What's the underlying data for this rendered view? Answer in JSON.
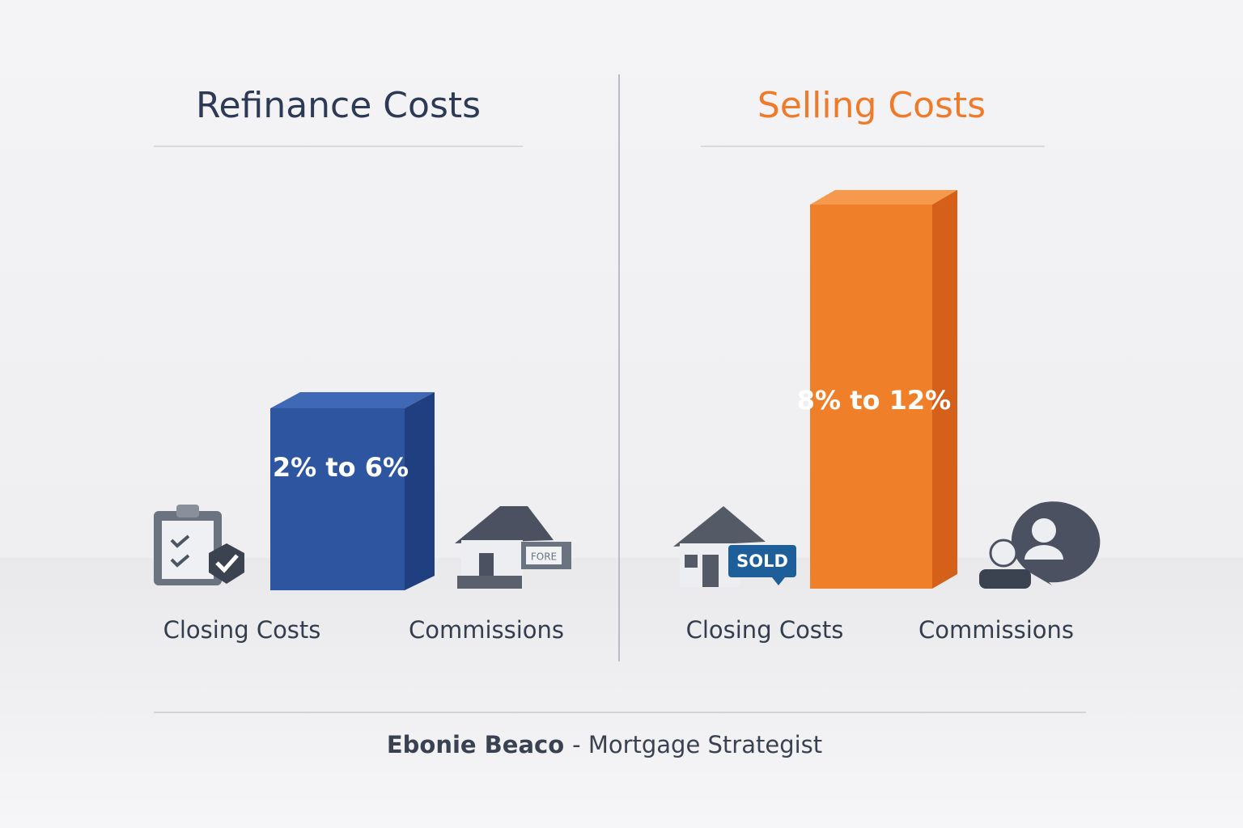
{
  "left": {
    "title": "Refinance Costs",
    "range_label": "2% to 6%",
    "labels": [
      "Closing Costs",
      "Commissions"
    ],
    "sign_text": "FORE"
  },
  "right": {
    "title": "Selling Costs",
    "range_label": "8% to 12%",
    "labels": [
      "Closing Costs",
      "Commissions"
    ],
    "sign_text": "SOLD"
  },
  "footer": {
    "name": "Ebonie Beaco",
    "role": "- Mortgage Strategist"
  }
}
